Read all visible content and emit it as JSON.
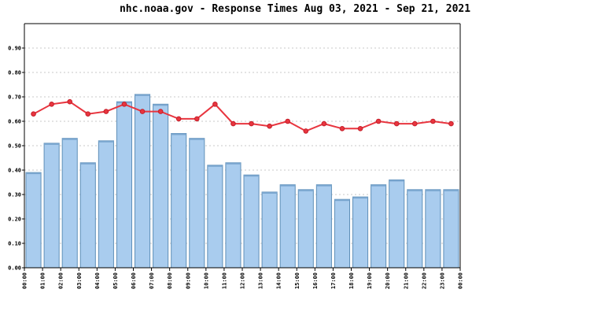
{
  "chart_data": {
    "type": "bar",
    "title": "nhc.noaa.gov - Response Times Aug 03, 2021 - Sep 21, 2021",
    "xlabel": "",
    "ylabel": "",
    "categories": [
      "00:00",
      "01:00",
      "02:00",
      "03:00",
      "04:00",
      "05:00",
      "06:00",
      "07:00",
      "08:00",
      "09:00",
      "10:00",
      "11:00",
      "12:00",
      "13:00",
      "14:00",
      "15:00",
      "16:00",
      "17:00",
      "18:00",
      "19:00",
      "20:00",
      "21:00",
      "22:00",
      "23:00"
    ],
    "x_tick_labels": [
      "00:00",
      "01:00",
      "02:00",
      "03:00",
      "04:00",
      "05:00",
      "06:00",
      "07:00",
      "08:00",
      "09:00",
      "10:00",
      "11:00",
      "12:00",
      "13:00",
      "14:00",
      "15:00",
      "16:00",
      "17:00",
      "18:00",
      "19:00",
      "20:00",
      "21:00",
      "22:00",
      "23:00",
      "00:00"
    ],
    "y_tick_labels": [
      "0.00",
      "0.10",
      "0.20",
      "0.30",
      "0.40",
      "0.50",
      "0.60",
      "0.70",
      "0.80",
      "0.90"
    ],
    "ylim": [
      0,
      1.0
    ],
    "grid": true,
    "legend": "none",
    "series": [
      {
        "type": "bar",
        "color": "#a9ccee",
        "values": [
          0.39,
          0.51,
          0.53,
          0.43,
          0.52,
          0.68,
          0.71,
          0.67,
          0.55,
          0.53,
          0.42,
          0.43,
          0.38,
          0.31,
          0.34,
          0.32,
          0.34,
          0.28,
          0.29,
          0.34,
          0.36,
          0.32,
          0.32,
          0.32
        ]
      },
      {
        "type": "line",
        "color": "#e8353f",
        "values": [
          0.63,
          0.67,
          0.68,
          0.63,
          0.64,
          0.67,
          0.64,
          0.64,
          0.61,
          0.61,
          0.67,
          0.59,
          0.59,
          0.58,
          0.6,
          0.56,
          0.59,
          0.57,
          0.57,
          0.6,
          0.59,
          0.59,
          0.6,
          0.59
        ]
      }
    ]
  }
}
